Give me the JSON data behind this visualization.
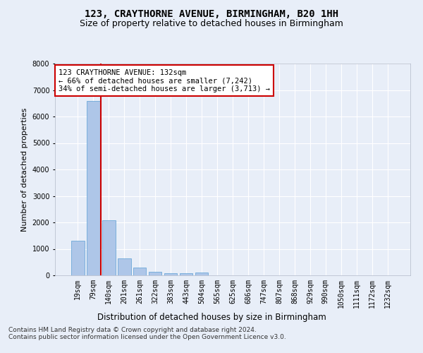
{
  "title1": "123, CRAYTHORNE AVENUE, BIRMINGHAM, B20 1HH",
  "title2": "Size of property relative to detached houses in Birmingham",
  "xlabel": "Distribution of detached houses by size in Birmingham",
  "ylabel": "Number of detached properties",
  "categories": [
    "19sqm",
    "79sqm",
    "140sqm",
    "201sqm",
    "261sqm",
    "322sqm",
    "383sqm",
    "443sqm",
    "504sqm",
    "565sqm",
    "625sqm",
    "686sqm",
    "747sqm",
    "807sqm",
    "868sqm",
    "929sqm",
    "990sqm",
    "1050sqm",
    "1111sqm",
    "1172sqm",
    "1232sqm"
  ],
  "values": [
    1300,
    6600,
    2080,
    650,
    290,
    130,
    90,
    70,
    100,
    0,
    0,
    0,
    0,
    0,
    0,
    0,
    0,
    0,
    0,
    0,
    0
  ],
  "bar_color": "#aec6e8",
  "bar_edge_color": "#5a9fd4",
  "vline_x_idx": 2,
  "vline_color": "#cc0000",
  "annotation_text": "123 CRAYTHORNE AVENUE: 132sqm\n← 66% of detached houses are smaller (7,242)\n34% of semi-detached houses are larger (3,713) →",
  "annotation_box_color": "#ffffff",
  "annotation_box_edge": "#cc0000",
  "ylim": [
    0,
    8000
  ],
  "yticks": [
    0,
    1000,
    2000,
    3000,
    4000,
    5000,
    6000,
    7000,
    8000
  ],
  "footer1": "Contains HM Land Registry data © Crown copyright and database right 2024.",
  "footer2": "Contains public sector information licensed under the Open Government Licence v3.0.",
  "bg_color": "#e8eef8",
  "plot_bg_color": "#e8eef8",
  "grid_color": "#ffffff",
  "title1_fontsize": 10,
  "title2_fontsize": 9,
  "xlabel_fontsize": 8.5,
  "ylabel_fontsize": 8,
  "tick_fontsize": 7,
  "annotation_fontsize": 7.5,
  "footer_fontsize": 6.5
}
